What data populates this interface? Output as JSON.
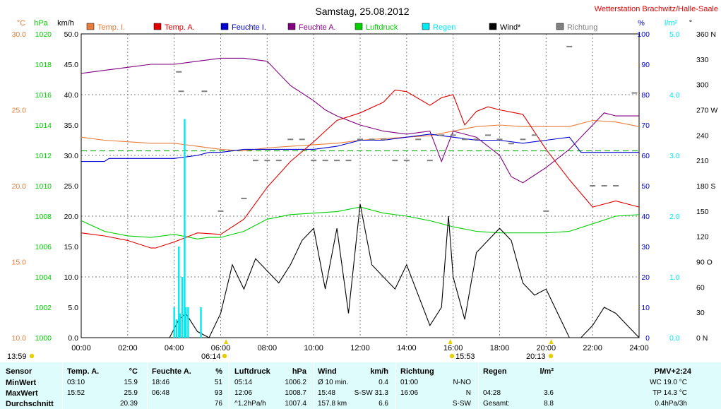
{
  "title": "Samstag, 25.08.2012",
  "station": "Wetterstation Brachwitz/Halle-Saale",
  "colors": {
    "temp_innen": "#e87c3b",
    "temp_aussen": "#e00000",
    "feuchte_innen": "#0000d0",
    "feuchte_aussen": "#800080",
    "luftdruck": "#00d000",
    "regen": "#00e8f0",
    "wind": "#000000",
    "richtung": "#808080",
    "dashed_green": "#00b000"
  },
  "axis_units": {
    "temp": "°C",
    "pressure": "hPa",
    "wind": "km/h",
    "humidity": "%",
    "rain": "l/m²",
    "direction": "°"
  },
  "legend": [
    {
      "label": "Temp. I.",
      "color_key": "temp_innen"
    },
    {
      "label": "Temp. A.",
      "color_key": "temp_aussen"
    },
    {
      "label": "Feuchte I.",
      "color_key": "feuchte_innen"
    },
    {
      "label": "Feuchte A.",
      "color_key": "feuchte_aussen"
    },
    {
      "label": "Luftdruck",
      "color_key": "luftdruck"
    },
    {
      "label": "Regen",
      "color_key": "regen"
    },
    {
      "label": "Wind*",
      "color_key": "wind"
    },
    {
      "label": "Richtung",
      "color_key": "richtung"
    }
  ],
  "chart_data": {
    "type": "line",
    "x_ticks": [
      "00:00",
      "02:00",
      "04:00",
      "06:00",
      "08:00",
      "10:00",
      "12:00",
      "14:00",
      "16:00",
      "18:00",
      "20:00",
      "22:00",
      "24:00"
    ],
    "xlim": [
      0,
      24
    ],
    "axes": {
      "temp": {
        "ylim": [
          10,
          30
        ],
        "ticks": [
          "30.0",
          "25.0",
          "20.0",
          "15.0",
          "10.0"
        ]
      },
      "pressure": {
        "ylim": [
          1000,
          1020
        ],
        "ticks": [
          "1020",
          "1018",
          "1016",
          "1014",
          "1012",
          "1010",
          "1008",
          "1006",
          "1004",
          "1002",
          "1000"
        ]
      },
      "wind": {
        "ylim": [
          0,
          50
        ],
        "ticks": [
          "50.0",
          "45.0",
          "40.0",
          "35.0",
          "30.0",
          "25.0",
          "20.0",
          "15.0",
          "10.0",
          "5.0",
          "0.0"
        ]
      },
      "humidity": {
        "ylim": [
          0,
          100
        ],
        "ticks": [
          "100",
          "90",
          "80",
          "70",
          "60",
          "50",
          "40",
          "30",
          "20",
          "10",
          "0"
        ]
      },
      "rain": {
        "ylim": [
          0,
          5
        ],
        "ticks": [
          "5.0",
          "4.0",
          "3.0",
          "2.0",
          "1.0",
          "0.0"
        ]
      },
      "direction": {
        "ylim": [
          0,
          360
        ],
        "ticks": [
          "360 N",
          "330",
          "300",
          "270 W",
          "240",
          "210",
          "180 S",
          "150",
          "120",
          "90 O",
          "60",
          "30",
          "0 N"
        ]
      }
    },
    "markers": {
      "start": "13:59",
      "sunrise": "06:14",
      "noon": "15:53",
      "sunset": "20:13",
      "marker_hours": [
        6.23,
        15.88,
        20.22
      ]
    },
    "reference_line": {
      "axis": "pressure",
      "value": 1012.3
    },
    "series": [
      {
        "name": "Temp. I.",
        "axis": "temp",
        "color_key": "temp_innen",
        "x": [
          0,
          1,
          2,
          3,
          4,
          5,
          6,
          7,
          8,
          9,
          10,
          11,
          12,
          13,
          14,
          15,
          16,
          17,
          18,
          19,
          20,
          21,
          22,
          23,
          24
        ],
        "y": [
          23.2,
          23.0,
          22.9,
          22.8,
          22.8,
          22.6,
          22.4,
          22.3,
          22.5,
          22.6,
          22.7,
          22.8,
          23.0,
          23.1,
          23.2,
          23.3,
          23.6,
          23.9,
          24.0,
          23.9,
          23.9,
          23.9,
          24.3,
          24.2,
          23.9
        ]
      },
      {
        "name": "Temp. A.",
        "axis": "temp",
        "color_key": "temp_aussen",
        "x": [
          0,
          1,
          2,
          3,
          3.2,
          4,
          5,
          6,
          7,
          8,
          9,
          10,
          10.5,
          11,
          12,
          13,
          13.5,
          14,
          15,
          15.5,
          16,
          16.5,
          17,
          17.5,
          18,
          19,
          20,
          21,
          22,
          23,
          24
        ],
        "y": [
          16.9,
          16.7,
          16.4,
          15.9,
          15.9,
          16.3,
          16.9,
          16.8,
          17.8,
          19.9,
          21.6,
          22.9,
          23.6,
          24.3,
          24.8,
          25.5,
          26.3,
          26.2,
          25.3,
          25.8,
          26.0,
          24.0,
          24.9,
          25.2,
          25.0,
          24.7,
          22.4,
          20.4,
          18.6,
          19.0,
          18.6
        ]
      },
      {
        "name": "Feuchte I.",
        "axis": "humidity",
        "color_key": "feuchte_innen",
        "x": [
          0,
          1,
          1.2,
          2,
          3,
          4,
          5,
          5.5,
          6,
          7,
          8,
          9,
          10,
          11,
          12,
          13,
          14,
          15,
          16,
          17,
          18,
          19,
          20,
          21,
          21.5,
          22,
          23,
          24
        ],
        "y": [
          58,
          58,
          59,
          59,
          59,
          59,
          60,
          61,
          61,
          62,
          62,
          62,
          62,
          63,
          65,
          65,
          66,
          67,
          66,
          65,
          65,
          64,
          65,
          66,
          61,
          61,
          61,
          61
        ]
      },
      {
        "name": "Feuchte A.",
        "axis": "humidity",
        "color_key": "feuchte_aussen",
        "x": [
          0,
          1,
          2,
          3,
          4,
          5,
          6,
          7,
          8,
          9,
          10,
          10.5,
          11,
          12,
          13,
          14,
          15,
          15.5,
          16,
          17,
          18,
          18.5,
          19,
          20,
          21,
          22,
          22.5,
          23,
          24
        ],
        "y": [
          87,
          88,
          89,
          90,
          90,
          91,
          92,
          92,
          91,
          83,
          78,
          75,
          73,
          70,
          68,
          67,
          68,
          58,
          68,
          66,
          60,
          53,
          51,
          56,
          62,
          70,
          74,
          73,
          73
        ]
      },
      {
        "name": "Luftdruck",
        "axis": "pressure",
        "color_key": "luftdruck",
        "x": [
          0,
          1,
          2,
          3,
          4,
          5,
          5.5,
          6,
          7,
          8,
          9,
          10,
          11,
          12,
          13,
          14,
          15,
          16,
          17,
          18,
          19,
          20,
          21,
          22,
          23,
          24
        ],
        "y": [
          1007.7,
          1007.0,
          1006.7,
          1006.6,
          1006.8,
          1006.5,
          1006.6,
          1006.6,
          1007.0,
          1007.8,
          1008.1,
          1008.2,
          1008.3,
          1008.6,
          1008.2,
          1008.0,
          1007.7,
          1007.3,
          1007.0,
          1006.9,
          1006.9,
          1006.9,
          1007.0,
          1007.5,
          1008.0,
          1008.1
        ]
      },
      {
        "name": "Wind*",
        "axis": "wind",
        "color_key": "wind",
        "x": [
          0,
          3.8,
          4.2,
          4.5,
          5,
          5.5,
          6,
          6.5,
          7,
          7.5,
          8,
          8.5,
          9,
          9.5,
          10,
          10.5,
          11,
          11.5,
          12,
          12.5,
          13,
          13.5,
          14,
          14.5,
          15,
          15.5,
          15.8,
          16,
          16.5,
          17,
          17.5,
          18,
          18.5,
          19,
          19.5,
          20,
          20.5,
          21,
          21.5,
          22,
          22.5,
          23,
          23.5,
          24
        ],
        "y": [
          0,
          0,
          3,
          4,
          1,
          0,
          4,
          12,
          8,
          13,
          11,
          9,
          12,
          16,
          18,
          8,
          18,
          4,
          22,
          12,
          10,
          8,
          12,
          7,
          2,
          5,
          20,
          10,
          3,
          14,
          16,
          18,
          16,
          9,
          7,
          8,
          4,
          0,
          0,
          2,
          5,
          4,
          2,
          0
        ]
      },
      {
        "name": "Richtung",
        "axis": "direction",
        "color_key": "richtung",
        "style": "dots",
        "x": [
          4.2,
          4.3,
          5.3,
          6.0,
          7.0,
          7.5,
          8.0,
          8.5,
          9.0,
          9.5,
          10.0,
          10.5,
          11.0,
          11.5,
          12.0,
          12.5,
          13.0,
          13.5,
          14.0,
          14.5,
          15.0,
          15.5,
          16.0,
          16.5,
          17.0,
          17.5,
          18.0,
          18.5,
          19.0,
          19.5,
          20.0,
          21.0,
          22.0,
          22.5,
          23.0,
          23.8
        ],
        "y": [
          315,
          292,
          292,
          150,
          165,
          210,
          210,
          210,
          235,
          235,
          210,
          210,
          210,
          210,
          235,
          235,
          235,
          210,
          210,
          235,
          210,
          240,
          240,
          235,
          235,
          240,
          235,
          230,
          235,
          240,
          150,
          345,
          180,
          180,
          180,
          290
        ]
      },
      {
        "name": "Regen",
        "axis": "rain",
        "color_key": "regen",
        "style": "bars",
        "x": [
          4.0,
          4.1,
          4.2,
          4.25,
          4.35,
          4.45,
          4.5,
          4.6,
          5.15
        ],
        "y": [
          0.5,
          0.3,
          1.5,
          0.4,
          1.0,
          3.6,
          0.5,
          0.5,
          0.5
        ]
      }
    ]
  },
  "summary": {
    "sensor": {
      "header": "Sensor",
      "rows": [
        "MinWert",
        "MaxWert",
        "Durchschnitt"
      ]
    },
    "temp": {
      "header": "Temp. A.",
      "unit": "°C",
      "rows": [
        [
          "03:10",
          "15.9"
        ],
        [
          "15:52",
          "25.9"
        ],
        [
          "",
          "20.39"
        ]
      ]
    },
    "feuchte": {
      "header": "Feuchte A.",
      "unit": "%",
      "rows": [
        [
          "18:46",
          "51"
        ],
        [
          "06:48",
          "93"
        ],
        [
          "",
          "76"
        ]
      ]
    },
    "druck": {
      "header": "Luftdruck",
      "unit": "hPa",
      "rows": [
        [
          "05:14",
          "1006.2"
        ],
        [
          "12:06",
          "1008.7"
        ],
        [
          "^1.2hPa/h",
          "1007.4"
        ]
      ]
    },
    "wind": {
      "header": "Wind",
      "unit": "km/h",
      "rows": [
        [
          "Ø 10 min.",
          "0.4"
        ],
        [
          "15:48",
          "S-SW 31.3"
        ],
        [
          "157.8 km",
          "6.6"
        ]
      ]
    },
    "richtung": {
      "header": "Richtung",
      "rows": [
        [
          "01:00",
          "N-NO"
        ],
        [
          "16:06",
          "N"
        ],
        [
          "",
          "S-SW"
        ]
      ]
    },
    "regen": {
      "header": "Regen",
      "unit": "l/m²",
      "rows": [
        [
          "",
          ""
        ],
        [
          "04:28",
          "3.6"
        ],
        [
          "Gesamt:",
          "8.8"
        ]
      ]
    },
    "pmv": {
      "header": "PMV+2:24",
      "rows": [
        "WC 19.0 °C",
        "TP 14.3 °C",
        "0.4hPa/3h"
      ]
    }
  }
}
